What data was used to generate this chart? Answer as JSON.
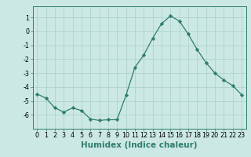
{
  "x": [
    0,
    1,
    2,
    3,
    4,
    5,
    6,
    7,
    8,
    9,
    10,
    11,
    12,
    13,
    14,
    15,
    16,
    17,
    18,
    19,
    20,
    21,
    22,
    23
  ],
  "y": [
    -4.5,
    -4.8,
    -5.5,
    -5.8,
    -5.5,
    -5.7,
    -6.3,
    -6.4,
    -6.35,
    -6.35,
    -4.6,
    -2.6,
    -1.7,
    -0.5,
    0.55,
    1.1,
    0.75,
    -0.2,
    -1.3,
    -2.25,
    -3.0,
    -3.5,
    -3.9,
    -4.55
  ],
  "xlabel": "Humidex (Indice chaleur)",
  "ylim": [
    -7.0,
    1.8
  ],
  "xlim": [
    -0.5,
    23.5
  ],
  "yticks": [
    1,
    0,
    -1,
    -2,
    -3,
    -4,
    -5,
    -6
  ],
  "xticks": [
    0,
    1,
    2,
    3,
    4,
    5,
    6,
    7,
    8,
    9,
    10,
    11,
    12,
    13,
    14,
    15,
    16,
    17,
    18,
    19,
    20,
    21,
    22,
    23
  ],
  "line_color": "#2e7d6e",
  "marker_color": "#2e7d6e",
  "bg_color": "#cce8e4",
  "grid_color": "#aacfca",
  "tick_label_fontsize": 5.8,
  "xlabel_fontsize": 7.5
}
